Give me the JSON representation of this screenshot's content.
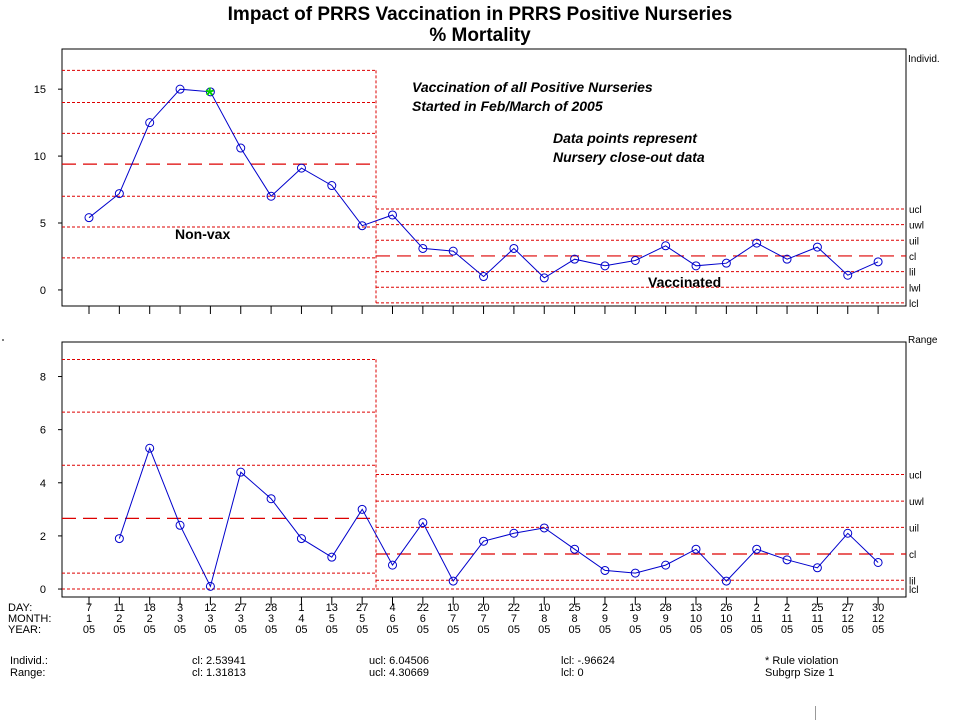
{
  "title": {
    "line1": "Impact of PRRS Vaccination in PRRS Positive Nurseries",
    "line2": "% Mortality"
  },
  "annotations": {
    "vaccination_note_1": "Vaccination of all Positive Nurseries",
    "vaccination_note_2": "Started in Feb/March of 2005",
    "data_note_1": "Data points represent",
    "data_note_2": "Nursery close-out data",
    "non_vax": "Non-vax",
    "vaccinated": "Vaccinated"
  },
  "axis_rows": {
    "day_label": "DAY:",
    "month_label": "MONTH:",
    "year_label": "YEAR:",
    "days": [
      "7",
      "11",
      "18",
      "3",
      "12",
      "27",
      "28",
      "1",
      "13",
      "27",
      "4",
      "22",
      "10",
      "20",
      "22",
      "10",
      "25",
      "2",
      "13",
      "28",
      "13",
      "26",
      "2",
      "2",
      "25",
      "27",
      "30"
    ],
    "months": [
      "1",
      "2",
      "2",
      "3",
      "3",
      "3",
      "3",
      "4",
      "5",
      "5",
      "6",
      "6",
      "7",
      "7",
      "7",
      "8",
      "8",
      "9",
      "9",
      "9",
      "10",
      "10",
      "11",
      "11",
      "11",
      "12",
      "12"
    ],
    "years": [
      "05",
      "05",
      "05",
      "05",
      "05",
      "05",
      "05",
      "05",
      "05",
      "05",
      "05",
      "05",
      "05",
      "05",
      "05",
      "05",
      "05",
      "05",
      "05",
      "05",
      "05",
      "05",
      "05",
      "05",
      "05",
      "05",
      "05"
    ]
  },
  "footer": {
    "individ_label": "Individ.:",
    "range_label": "Range:",
    "individ_cl": "cl:  2.53941",
    "individ_ucl": "ucl:  6.04506",
    "individ_lcl": "lcl: -.96624",
    "range_cl": "cl:  1.31813",
    "range_ucl": "ucl:  4.30669",
    "range_lcl": "lcl:  0",
    "rule_violation": "* Rule violation",
    "subgroup": "Subgrp Size 1"
  },
  "chart_data": [
    {
      "type": "line",
      "panel_label": "Individ.",
      "title": "% Mortality",
      "y_ticks": [
        0,
        5,
        10,
        15
      ],
      "ylim": [
        -1.2,
        18
      ],
      "values": [
        5.4,
        7.2,
        12.5,
        15.0,
        14.8,
        10.6,
        7.0,
        9.1,
        7.8,
        4.8,
        5.6,
        3.1,
        2.9,
        1.0,
        3.1,
        0.9,
        2.3,
        1.8,
        2.2,
        3.3,
        1.8,
        2.0,
        3.5,
        2.3,
        3.2,
        1.1,
        2.1
      ],
      "rule_violation_index": 4,
      "phase_change_after_index": 9,
      "phase_1_limits": {
        "lcl": 2.4,
        "lwl": 4.7,
        "lil": 7.0,
        "cl": 9.4,
        "uil": 11.7,
        "uwl": 14.0,
        "ucl": 16.4
      },
      "phase_2_limits": {
        "lcl": -0.97,
        "lwl": 0.2,
        "lil": 1.37,
        "cl": 2.54,
        "uil": 3.71,
        "uwl": 4.88,
        "ucl": 6.05
      },
      "limit_labels": [
        "ucl",
        "uwl",
        "uil",
        "cl",
        "lil",
        "lwl",
        "lcl"
      ],
      "colors": {
        "line": "#0000cc",
        "limits": "#dd0000",
        "violation": "#00cc00"
      }
    },
    {
      "type": "line",
      "panel_label": "Range",
      "y_ticks": [
        0,
        2,
        4,
        6,
        8
      ],
      "ylim": [
        -0.3,
        9.3
      ],
      "values": [
        null,
        1.9,
        5.3,
        2.4,
        0.1,
        4.4,
        3.4,
        1.9,
        1.2,
        3.0,
        0.9,
        2.5,
        0.3,
        1.8,
        2.1,
        2.3,
        1.5,
        0.7,
        0.6,
        0.9,
        1.5,
        0.3,
        1.5,
        1.1,
        0.8,
        2.1,
        1.0
      ],
      "phase_change_after_index": 9,
      "phase_1_limits": {
        "lcl": 0,
        "lil": 0.6,
        "cl": 2.66,
        "uil": 4.66,
        "uwl": 6.66,
        "ucl": 8.64
      },
      "phase_2_limits": {
        "lcl": 0,
        "lwl": 0,
        "lil": 0.33,
        "cl": 1.32,
        "uil": 2.32,
        "uwl": 3.31,
        "ucl": 4.31
      },
      "limit_labels": [
        "ucl",
        "uwl",
        "uil",
        "cl",
        "lil",
        "lcl"
      ],
      "colors": {
        "line": "#0000cc",
        "limits": "#dd0000"
      }
    }
  ]
}
